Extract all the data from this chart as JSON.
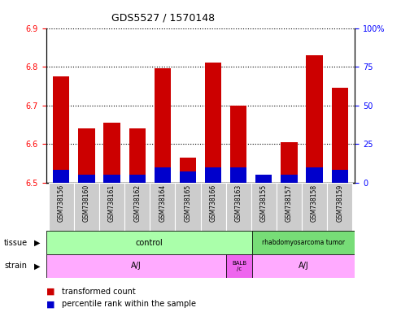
{
  "title": "GDS5527 / 1570148",
  "samples": [
    "GSM738156",
    "GSM738160",
    "GSM738161",
    "GSM738162",
    "GSM738164",
    "GSM738165",
    "GSM738166",
    "GSM738163",
    "GSM738155",
    "GSM738157",
    "GSM738158",
    "GSM738159"
  ],
  "transformed_count": [
    6.775,
    6.64,
    6.655,
    6.64,
    6.795,
    6.565,
    6.81,
    6.7,
    6.52,
    6.605,
    6.83,
    6.745
  ],
  "percentile_rank_pct": [
    8,
    5,
    5,
    5,
    10,
    7,
    10,
    10,
    5,
    5,
    10,
    8
  ],
  "ylim_left": [
    6.5,
    6.9
  ],
  "ylim_right": [
    0,
    100
  ],
  "yticks_left": [
    6.5,
    6.6,
    6.7,
    6.8,
    6.9
  ],
  "yticks_right": [
    0,
    25,
    50,
    75,
    100
  ],
  "ytick_labels_right": [
    "0",
    "25",
    "50",
    "75",
    "100%"
  ],
  "bar_bottom": 6.5,
  "red_color": "#cc0000",
  "blue_color": "#0000cc",
  "tissue_control_color": "#aaffaa",
  "tissue_rhabdo_color": "#77dd77",
  "strain_aj_color": "#ffaaff",
  "strain_balb_color": "#ee66ee",
  "xlabels_bg": "#cccccc",
  "n_control": 8,
  "n_balb": 1,
  "n_aj2": 4,
  "n_total": 12
}
